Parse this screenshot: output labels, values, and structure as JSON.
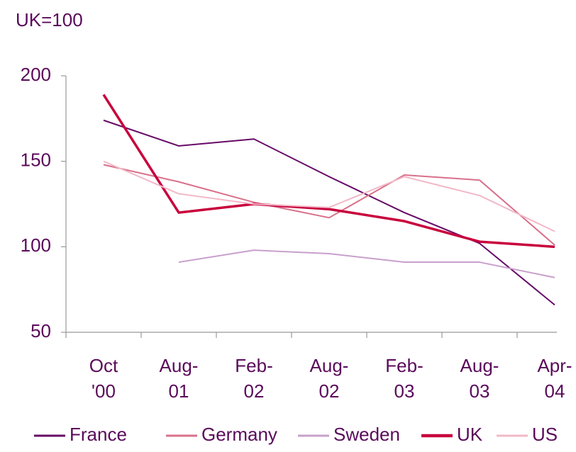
{
  "chart_data": {
    "type": "line",
    "title": "UK=100",
    "categories": [
      "Oct\n'00",
      "Aug-\n01",
      "Feb-\n02",
      "Aug-\n02",
      "Feb-\n03",
      "Aug-\n03",
      "Apr-\n04"
    ],
    "series": [
      {
        "name": "France",
        "color": "#660a66",
        "width": 2,
        "values": [
          174,
          159,
          163,
          141,
          120,
          102,
          66
        ]
      },
      {
        "name": "Germany",
        "color": "#d8708a",
        "width": 2,
        "values": [
          148,
          138,
          126,
          117,
          142,
          139,
          101
        ]
      },
      {
        "name": "Sweden",
        "color": "#c8a0cc",
        "width": 2,
        "values": [
          null,
          91,
          98,
          96,
          91,
          91,
          82
        ]
      },
      {
        "name": "UK",
        "color": "#c8003c",
        "width": 3.5,
        "values": [
          189,
          120,
          125,
          122,
          115,
          103,
          100
        ]
      },
      {
        "name": "US",
        "color": "#f2b8c8",
        "width": 2,
        "values": [
          150,
          131,
          125,
          123,
          141,
          130,
          109
        ]
      }
    ],
    "ylim": [
      50,
      200
    ],
    "yticks": [
      50,
      100,
      150,
      200
    ],
    "grid": false
  }
}
